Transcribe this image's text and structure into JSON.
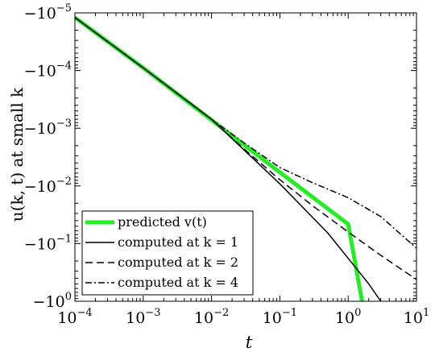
{
  "chart_data": {
    "type": "line",
    "xscale": "log",
    "yscale": "log-negative",
    "xlim": [
      0.0001,
      10
    ],
    "ylim": [
      -1,
      -1e-05
    ],
    "xlabel": "t",
    "ylabel": "u(k, t) at small k",
    "x_ticks": [
      {
        "base": "10",
        "exp": "−4",
        "value": 0.0001
      },
      {
        "base": "10",
        "exp": "−3",
        "value": 0.001
      },
      {
        "base": "10",
        "exp": "−2",
        "value": 0.01
      },
      {
        "base": "10",
        "exp": "−1",
        "value": 0.1
      },
      {
        "base": "10",
        "exp": "0",
        "value": 1
      },
      {
        "base": "10",
        "exp": "1",
        "value": 10
      }
    ],
    "y_ticks": [
      {
        "base": "−10",
        "exp": "−5",
        "value": -1e-05
      },
      {
        "base": "−10",
        "exp": "−4",
        "value": -0.0001
      },
      {
        "base": "−10",
        "exp": "−3",
        "value": -0.001
      },
      {
        "base": "−10",
        "exp": "−2",
        "value": -0.01
      },
      {
        "base": "−10",
        "exp": "−1",
        "value": -0.1
      },
      {
        "base": "−10",
        "exp": "0",
        "value": -1
      }
    ],
    "legend_position": "bottom-left",
    "grid": false,
    "series": [
      {
        "name": "predicted v(t)",
        "color": "#22ee22",
        "style": "thick-solid",
        "x": [
          0.0001,
          0.001,
          0.01,
          0.1,
          1,
          1.6
        ],
        "y": [
          -1.2e-05,
          -9e-05,
          -0.00072,
          -0.0058,
          -0.046,
          -1
        ]
      },
      {
        "name": "computed at k = 1",
        "color": "#000000",
        "style": "solid",
        "x": [
          0.0001,
          0.001,
          0.01,
          0.1,
          0.5,
          1,
          2,
          3
        ],
        "y": [
          -1.2e-05,
          -9e-05,
          -0.0007,
          -0.0092,
          -0.065,
          -0.18,
          -0.5,
          -1
        ]
      },
      {
        "name": "computed at k = 2",
        "color": "#000000",
        "style": "dashed",
        "x": [
          0.0001,
          0.001,
          0.01,
          0.03,
          0.1,
          0.3,
          1,
          3,
          10
        ],
        "y": [
          -1.2e-05,
          -9e-05,
          -0.0007,
          -0.0023,
          -0.0078,
          -0.022,
          -0.063,
          -0.16,
          -0.42
        ]
      },
      {
        "name": "computed at k = 4",
        "color": "#000000",
        "style": "dash-dot",
        "x": [
          0.0001,
          0.001,
          0.01,
          0.03,
          0.1,
          0.3,
          1,
          3,
          10
        ],
        "y": [
          -1.2e-05,
          -9e-05,
          -0.0007,
          -0.0018,
          -0.0048,
          -0.0088,
          -0.016,
          -0.034,
          -0.12
        ]
      }
    ]
  }
}
